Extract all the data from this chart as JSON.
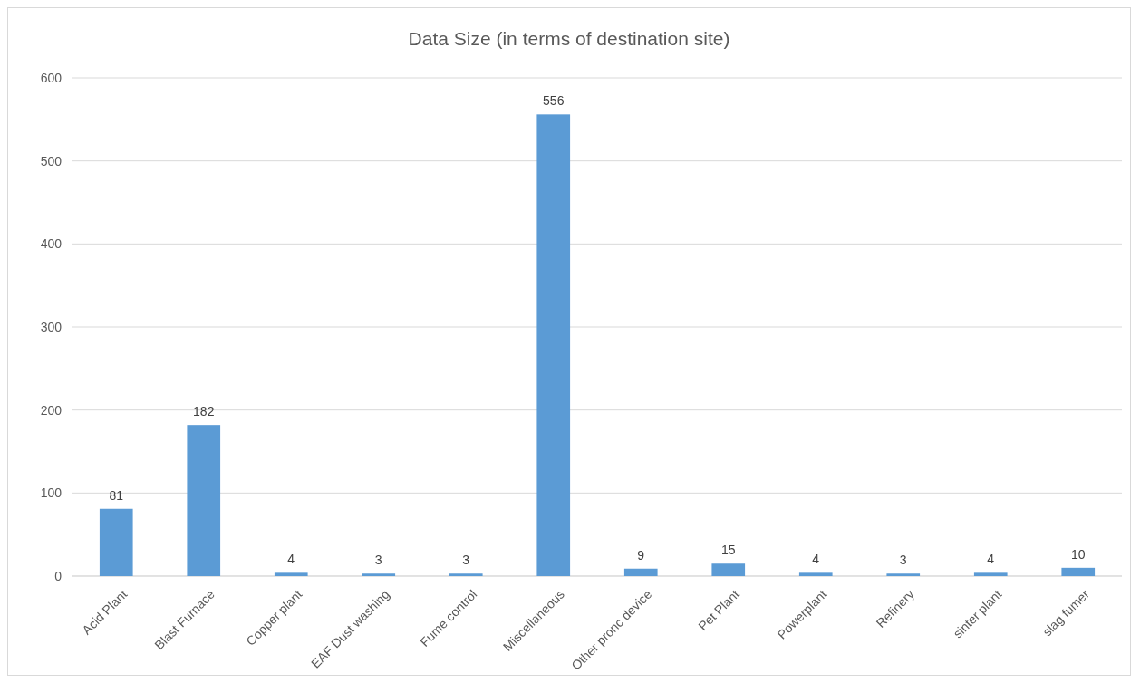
{
  "chart_data": {
    "type": "bar",
    "title": "Data Size (in terms of destination site)",
    "categories": [
      "Acid Plant",
      "Blast Furnace",
      "Copper plant",
      "EAF Dust washing",
      "Fume control",
      "Miscellaneous",
      "Other pronc device",
      "Pet Plant",
      "Powerplant",
      "Refinery",
      "sinter plant",
      "slag fumer"
    ],
    "values": [
      81,
      182,
      4,
      3,
      3,
      556,
      9,
      15,
      4,
      3,
      4,
      10
    ],
    "color": "#5b9bd5",
    "ylim": [
      0,
      600
    ],
    "yticks": [
      0,
      100,
      200,
      300,
      400,
      500,
      600
    ],
    "grid": "y",
    "data_labels": true
  }
}
